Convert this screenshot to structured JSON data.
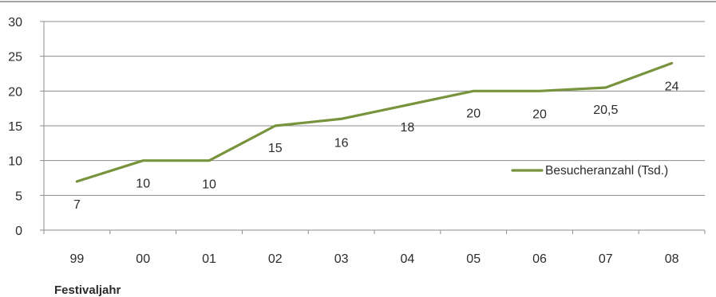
{
  "chart_data": {
    "type": "line",
    "title": "",
    "xlabel": "Festivaljahr",
    "ylabel": "",
    "categories": [
      "99",
      "00",
      "01",
      "02",
      "03",
      "04",
      "05",
      "06",
      "07",
      "08"
    ],
    "series": [
      {
        "name": "Besucheranzahl  (Tsd.)",
        "values": [
          7,
          10,
          10,
          15,
          16,
          18,
          20,
          20,
          20.5,
          24
        ],
        "labels": [
          "7",
          "10",
          "10",
          "15",
          "16",
          "18",
          "20",
          "20",
          "20,5",
          "24"
        ],
        "color": "#77933c"
      }
    ],
    "ylim": [
      0,
      30
    ],
    "yticks": [
      0,
      5,
      10,
      15,
      20,
      25,
      30
    ],
    "grid": true,
    "legend_position": "right"
  },
  "colors": {
    "gridline": "#8c8c8c",
    "axis": "#8c8c8c",
    "frame": "#6f6f6f",
    "text": "#2b2b2b"
  }
}
